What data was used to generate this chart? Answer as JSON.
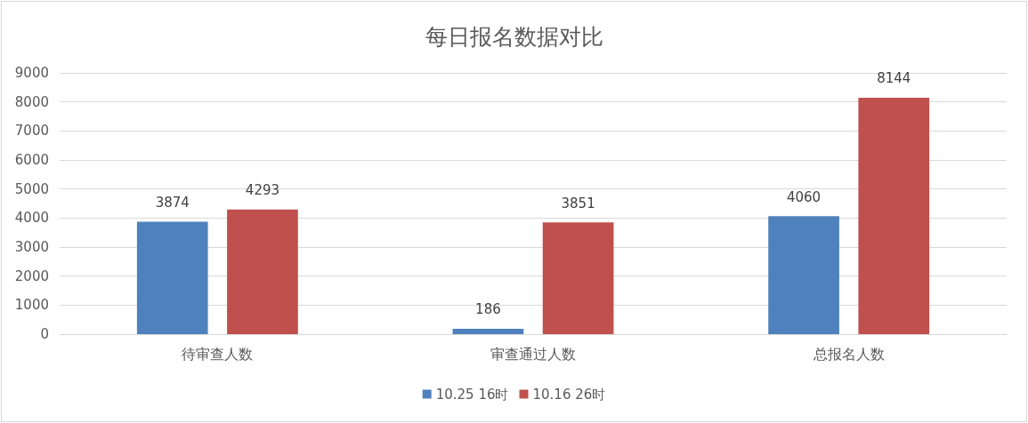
{
  "chart_data": {
    "type": "bar",
    "title": "每日报名数据对比",
    "categories": [
      "待审查人数",
      "审查通过人数",
      "总报名人数"
    ],
    "series": [
      {
        "name": "10.25 16时",
        "color": "#4f81bd",
        "values": [
          3874,
          186,
          4060
        ]
      },
      {
        "name": "10.16 26时",
        "color": "#c0504d",
        "values": [
          4293,
          3851,
          8144
        ]
      }
    ],
    "ylim": [
      0,
      9000
    ],
    "yticks": [
      0,
      1000,
      2000,
      3000,
      4000,
      5000,
      6000,
      7000,
      8000,
      9000
    ],
    "grid": "y",
    "legend": "bottom",
    "data_labels": true
  }
}
